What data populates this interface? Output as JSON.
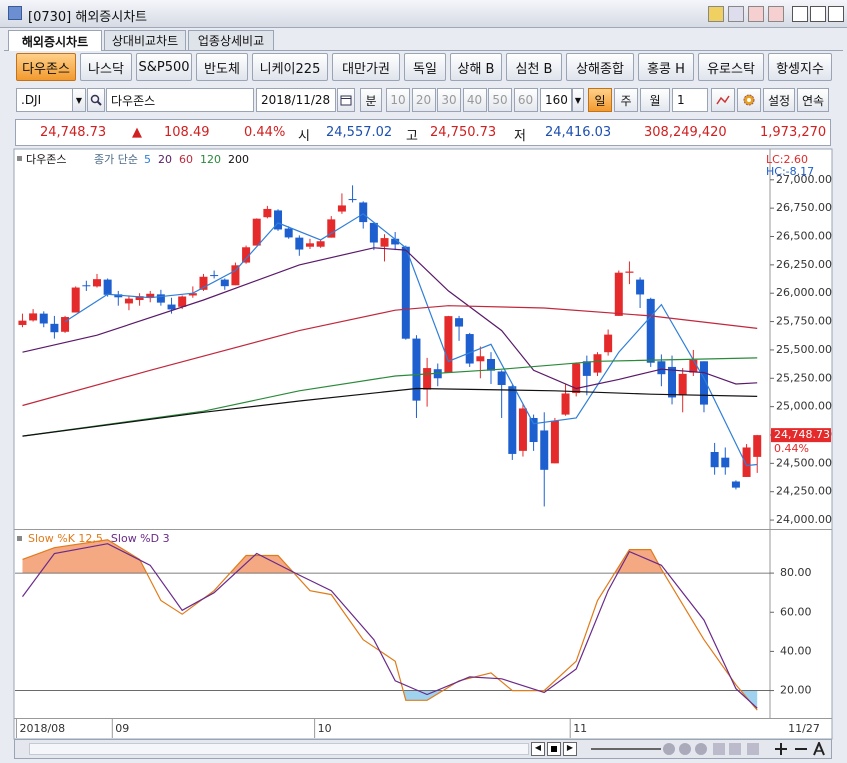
{
  "window": {
    "title": "[0730] 해외증시차트"
  },
  "tabs": [
    "해외증시차트",
    "상대비교차트",
    "업종상세비교"
  ],
  "markets": [
    "다우존스",
    "나스닥",
    "S&P500",
    "반도체",
    "니케이225",
    "대만가권",
    "독일",
    "상해 B",
    "심천 B",
    "상해종합",
    "홍콩 H",
    "유로스탁",
    "항셍지수"
  ],
  "toolbar": {
    "symbol": ".DJI",
    "name": "다우존스",
    "date": "2018/11/28",
    "minute": "분",
    "intervals": [
      "10",
      "20",
      "30",
      "40",
      "50",
      "60"
    ],
    "count": "160",
    "day": "일",
    "week": "주",
    "month": "월",
    "unit": "1",
    "settings": "설정",
    "continuous": "연속"
  },
  "info": {
    "price": "24,748.73",
    "arrow": "▲",
    "change": "108.49",
    "rate": "0.44%",
    "open_label": "시",
    "open": "24,557.02",
    "high_label": "고",
    "high": "24,750.73",
    "low_label": "저",
    "low": "24,416.03",
    "volume": "308,249,420",
    "amount": "1,973,270"
  },
  "chart_data": [
    {
      "type": "candlestick",
      "name": "다우존스",
      "ma_label": "종가 단순",
      "up_color": "#e42a2a",
      "down_color": "#1d5fcf",
      "xlim": [
        -0.7,
        70.2
      ],
      "ylim": [
        23930,
        27245
      ],
      "yticks": [
        {
          "value": 24000,
          "label": "24,000.00"
        },
        {
          "value": 24250,
          "label": "24,250.00"
        },
        {
          "value": 24500,
          "label": "24,500.00"
        },
        {
          "value": 24750,
          "label": "24,750.00"
        },
        {
          "value": 25000,
          "label": "25,000.00"
        },
        {
          "value": 25250,
          "label": "25,250.00"
        },
        {
          "value": 25500,
          "label": "25,500.00"
        },
        {
          "value": 25750,
          "label": "25,750.00"
        },
        {
          "value": 26000,
          "label": "26,000.00"
        },
        {
          "value": 26250,
          "label": "26,250.00"
        },
        {
          "value": 26500,
          "label": "26,500.00"
        },
        {
          "value": 26750,
          "label": "26,750.00"
        },
        {
          "value": 27000,
          "label": "27,000.00"
        }
      ],
      "x_labels": [
        {
          "label": "2018/08",
          "at": 0
        },
        {
          "label": "09",
          "at": 9
        },
        {
          "label": "10",
          "at": 28
        },
        {
          "label": "11",
          "at": 52
        },
        {
          "label": "11/27",
          "at": 69
        }
      ],
      "open": [
        25720,
        25760,
        25820,
        25730,
        25660,
        25830,
        26070,
        26060,
        26120,
        25990,
        25910,
        25940,
        25960,
        25990,
        25900,
        25880,
        25980,
        26030,
        26160,
        26120,
        26070,
        26270,
        26420,
        26670,
        26730,
        26570,
        26490,
        26410,
        26410,
        26490,
        26720,
        26830,
        26800,
        26620,
        26410,
        26480,
        26410,
        25600,
        25150,
        25330,
        25300,
        25780,
        25640,
        25400,
        25420,
        25310,
        25180,
        24610,
        24900,
        24790,
        24500,
        24930,
        25120,
        25400,
        25300,
        25480,
        25800,
        26180,
        26120,
        25950,
        25400,
        25350,
        25100,
        25300,
        25400,
        24600,
        24550,
        24340,
        24380,
        24557.02
      ],
      "high": [
        25820,
        25860,
        25840,
        25800,
        25800,
        26060,
        26110,
        26170,
        26130,
        26020,
        25980,
        26000,
        26020,
        26030,
        25960,
        25980,
        26060,
        26170,
        26200,
        26130,
        26270,
        26420,
        26660,
        26770,
        26740,
        26590,
        26510,
        26480,
        26470,
        26680,
        26880,
        26951,
        26810,
        26620,
        26520,
        26540,
        26420,
        25630,
        25430,
        25380,
        25800,
        25800,
        25650,
        25530,
        25480,
        25320,
        25190,
        25020,
        24930,
        24950,
        24900,
        25200,
        25390,
        25450,
        25480,
        25680,
        26200,
        26280,
        26140,
        25960,
        25460,
        25450,
        25340,
        25500,
        25400,
        24680,
        24640,
        24350,
        24670,
        24750.73
      ],
      "low": [
        25700,
        25750,
        25700,
        25600,
        25650,
        25830,
        26020,
        26050,
        25970,
        25890,
        25850,
        25890,
        25920,
        25890,
        25820,
        25860,
        25960,
        26020,
        26130,
        26030,
        26070,
        26260,
        26420,
        26660,
        26550,
        26480,
        26330,
        26390,
        26400,
        26490,
        26700,
        26800,
        26570,
        26380,
        26280,
        26380,
        25590,
        24900,
        25000,
        25180,
        25300,
        25580,
        25350,
        25250,
        25200,
        24900,
        24530,
        24560,
        24610,
        24120,
        24500,
        24920,
        25090,
        25100,
        25270,
        25450,
        25800,
        26080,
        25870,
        25350,
        25180,
        25020,
        24950,
        25270,
        24950,
        24400,
        24400,
        24270,
        24380,
        24416.03
      ],
      "close": [
        25758,
        25822,
        25733,
        25656,
        25790,
        26050,
        26064,
        26124,
        25986,
        25964,
        25952,
        25974,
        25995,
        25917,
        25857,
        25971,
        26000,
        26145,
        26154,
        26062,
        26246,
        26405,
        26657,
        26743,
        26562,
        26492,
        26385,
        26440,
        26458,
        26651,
        26774,
        26828,
        26627,
        26447,
        26486,
        26430,
        25599,
        25053,
        25340,
        25250,
        25798,
        25706,
        25380,
        25444,
        25317,
        25191,
        24583,
        24984,
        24688,
        24443,
        24875,
        25116,
        25380,
        25271,
        25462,
        25635,
        26181,
        26191,
        25989,
        25387,
        25286,
        25081,
        25289,
        25413,
        25018,
        24466,
        24465,
        24286,
        24640,
        24748.73
      ],
      "last_price_label": "24,748.73",
      "last_change_label": "0.44%",
      "annotations": [
        {
          "text": "LC:2.60",
          "color": "#e42a2a"
        },
        {
          "text": "HC:-8.17",
          "color": "#1d5fcf"
        }
      ],
      "series": [
        {
          "name": "5",
          "color": "#2f7fd8",
          "x": [
            4,
            8,
            12,
            16,
            20,
            24,
            28,
            32,
            36,
            40,
            44,
            48,
            52,
            56,
            60,
            64,
            68,
            69
          ],
          "values": [
            25750,
            25990,
            25960,
            26000,
            26200,
            26620,
            26470,
            26700,
            26400,
            25400,
            25550,
            24850,
            24900,
            25480,
            25900,
            25250,
            24480,
            24490
          ]
        },
        {
          "name": "20",
          "color": "#5a1a6a",
          "x": [
            0,
            7,
            17,
            26,
            33,
            36,
            40,
            45,
            48,
            52,
            56,
            60,
            64,
            67,
            69
          ],
          "values": [
            25480,
            25630,
            25940,
            26250,
            26400,
            26380,
            26020,
            25670,
            25320,
            25160,
            25240,
            25330,
            25300,
            25200,
            25210
          ]
        },
        {
          "name": "60",
          "color": "#c0283c",
          "x": [
            0,
            12,
            26,
            35,
            40,
            49,
            59,
            69
          ],
          "values": [
            25010,
            25320,
            25670,
            25850,
            25890,
            25870,
            25800,
            25690
          ]
        },
        {
          "name": "120",
          "color": "#2a8a3a",
          "x": [
            0,
            17,
            26,
            35,
            45,
            54,
            69
          ],
          "values": [
            24740,
            24960,
            25140,
            25270,
            25330,
            25400,
            25430
          ]
        },
        {
          "name": "200",
          "color": "#111111",
          "x": [
            0,
            17,
            26,
            37,
            50,
            59,
            69
          ],
          "values": [
            24740,
            24950,
            25050,
            25160,
            25140,
            25110,
            25090
          ]
        }
      ]
    },
    {
      "type": "line",
      "ylim": [
        7,
        101
      ],
      "levels": [
        20,
        80
      ],
      "over_color": "#f4a983",
      "under_color": "#9fd2ee",
      "yticks": [
        {
          "value": 20,
          "label": "20.00"
        },
        {
          "value": 40,
          "label": "40.00"
        },
        {
          "value": 60,
          "label": "60.00"
        },
        {
          "value": 80,
          "label": "80.00"
        }
      ],
      "series": [
        {
          "name": "Slow %K 12,5",
          "color": "#e07b1a",
          "x": [
            0,
            3,
            8,
            11,
            13,
            15,
            18,
            21,
            24,
            27,
            29,
            32,
            35,
            36,
            38,
            41,
            44,
            46,
            49,
            52,
            54,
            57,
            59,
            60,
            64,
            67,
            69
          ],
          "values": [
            87,
            93,
            97,
            87,
            66,
            59,
            71,
            89,
            89,
            71,
            69,
            46,
            35,
            15,
            15,
            25,
            29,
            20,
            20,
            35,
            66,
            92,
            92,
            82,
            46,
            23,
            10
          ]
        },
        {
          "name": "Slow %D 3",
          "color": "#6a2a8a",
          "x": [
            0,
            3,
            8,
            12,
            15,
            18,
            22,
            26,
            29,
            33,
            35,
            38,
            42,
            45,
            49,
            52,
            55,
            57,
            60,
            64,
            67,
            69
          ],
          "values": [
            68,
            90,
            95,
            84,
            61,
            70,
            90,
            79,
            71,
            46,
            25,
            18,
            27,
            26,
            19,
            31,
            71,
            91,
            84,
            56,
            21,
            11
          ]
        }
      ]
    }
  ]
}
